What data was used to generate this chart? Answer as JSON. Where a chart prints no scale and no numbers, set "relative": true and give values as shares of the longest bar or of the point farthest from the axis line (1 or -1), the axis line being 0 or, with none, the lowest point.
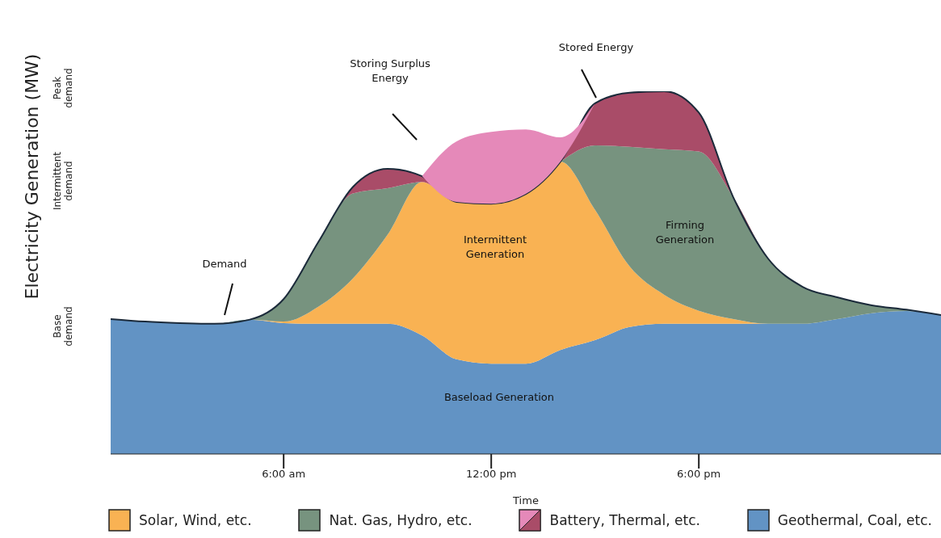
{
  "chart_data": {
    "type": "area",
    "stacked": true,
    "relative": true,
    "xlabel": "Time",
    "ylabel": "Electricity Generation (MW)",
    "x": [
      1,
      2,
      3,
      4,
      5,
      6,
      7,
      8,
      9,
      10,
      11,
      12,
      13,
      14,
      15,
      16,
      17,
      18,
      19,
      20,
      21,
      22,
      23,
      24,
      25
    ],
    "xlim": [
      1,
      25
    ],
    "xticks": [
      {
        "value": 6,
        "label": "6:00 am"
      },
      {
        "value": 12,
        "label": "12:00 pm"
      },
      {
        "value": 18,
        "label": "6:00 pm"
      }
    ],
    "series": [
      {
        "name": "Geothermal, Coal, etc.",
        "color": "#6293c4",
        "values": [
          0.372,
          0.365,
          0.361,
          0.359,
          0.37,
          0.361,
          0.359,
          0.359,
          0.359,
          0.327,
          0.261,
          0.249,
          0.249,
          0.287,
          0.314,
          0.35,
          0.359,
          0.359,
          0.359,
          0.359,
          0.359,
          0.372,
          0.388,
          0.394,
          0.383
        ]
      },
      {
        "name": "Solar, Wind, etc.",
        "color": "#f9b253",
        "values": [
          0,
          0,
          0,
          0,
          0,
          0.004,
          0.047,
          0.125,
          0.245,
          0.423,
          0.434,
          0.441,
          0.468,
          0.519,
          0.359,
          0.167,
          0.08,
          0.036,
          0.013,
          0,
          0,
          0,
          0,
          0,
          0
        ]
      },
      {
        "name": "Nat. Gas, Hydro, etc.",
        "color": "#77937f",
        "values": [
          0,
          0,
          0,
          0,
          0,
          0.062,
          0.178,
          0.234,
          0.129,
          0,
          0,
          0,
          0,
          0,
          0.178,
          0.33,
          0.401,
          0.439,
          0.335,
          0.18,
          0.102,
          0.06,
          0.022,
          0.004,
          0
        ]
      },
      {
        "name": "Battery, Thermal, etc.",
        "color": "#a94c68",
        "values": [
          0,
          0,
          0,
          0,
          0,
          0,
          0,
          0.018,
          0.053,
          0.016,
          0,
          0,
          0,
          0,
          0.116,
          0.149,
          0.16,
          0.107,
          0,
          0,
          0,
          0,
          0,
          0,
          0
        ]
      },
      {
        "color": "#e589b9",
        "values": [
          null,
          null,
          null,
          null,
          null,
          null,
          null,
          null,
          null,
          0,
          0.167,
          0.198,
          0.178,
          0.067,
          0,
          null,
          null,
          null,
          null,
          null,
          null,
          null,
          null,
          null,
          null
        ]
      }
    ],
    "annotations": [
      "Storing Surplus Energy",
      "Stored Energy",
      "Intermittent Generation",
      "Firming Generation",
      "Baseload Generation",
      "Peak demand",
      "Intermittent demand",
      "Base demand",
      "Demand"
    ],
    "legend": "bottom"
  }
}
